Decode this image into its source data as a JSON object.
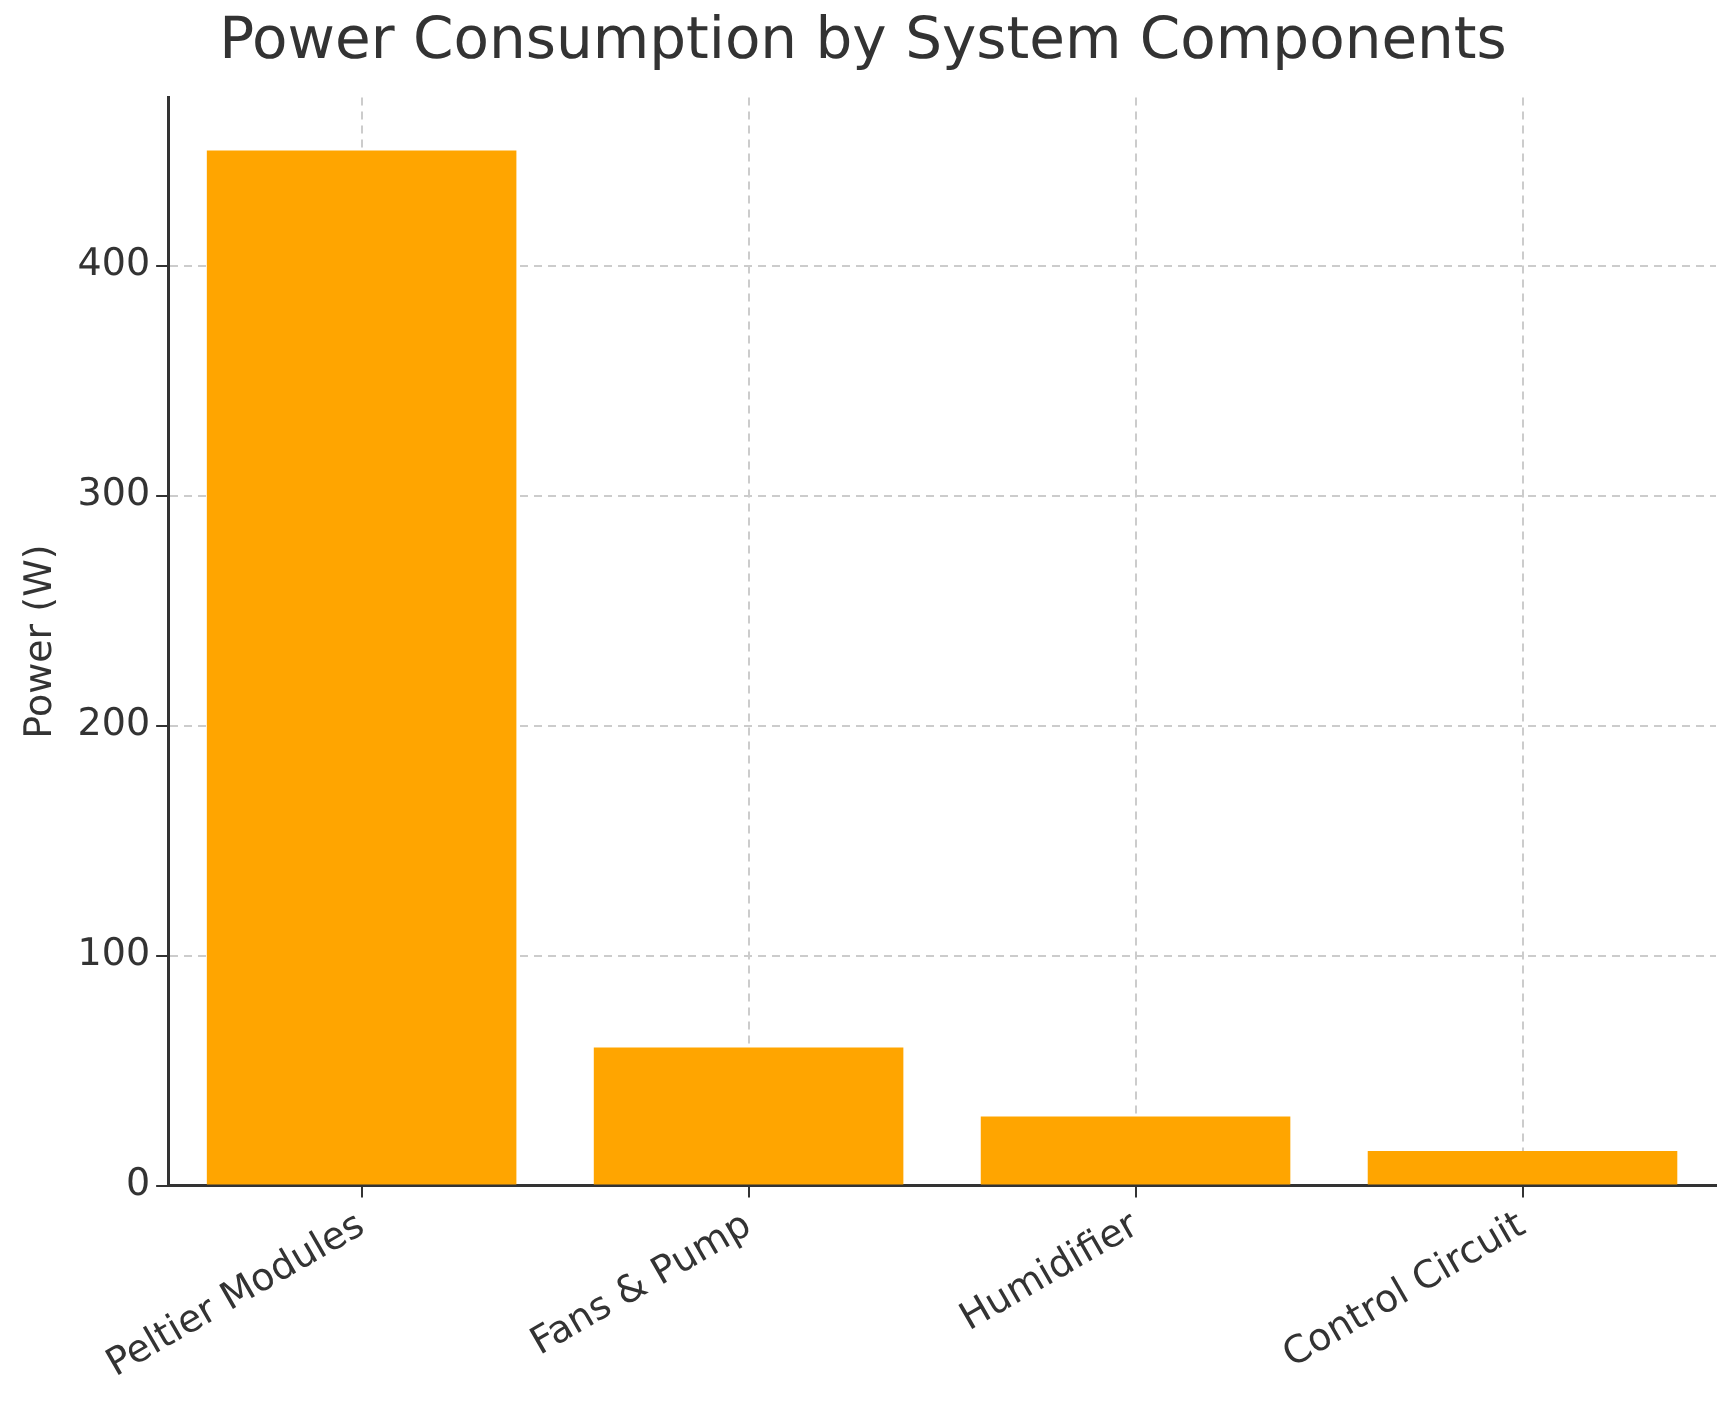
{
  "chart_data": {
    "type": "bar",
    "title": "Power Consumption by System Components",
    "ylabel": "Power (W)",
    "categories": [
      "Peltier Modules",
      "Fans & Pump",
      "Humidifier",
      "Control Circuit"
    ],
    "values": [
      450,
      60,
      30,
      15
    ],
    "color": "#ffa500",
    "ylim": [
      0,
      473
    ],
    "yticks": [
      0,
      100,
      200,
      300,
      400
    ],
    "grid": true
  }
}
